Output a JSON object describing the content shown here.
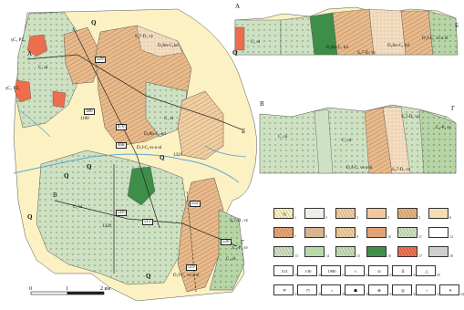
{
  "map": {
    "units": [
      "Q",
      "C₁ ol",
      "D₂fm-C₁kd",
      "S₂7-D₁ vz",
      "D₁f-C₁vs-a ol",
      "C₁-P₁ sv",
      "D₂fm-C₁ kd",
      "γC₁ PZ₁"
    ],
    "main_labels": {
      "q1": "Q",
      "q2": "Q",
      "q3": "Q",
      "q4": "Q",
      "q5": "Q",
      "q6": "Q",
      "q7": "Q",
      "c1ol_a": "C₁ ol",
      "c1ol_b": "C₁ ol",
      "c1ol_c": "C₁ ol",
      "c1ol_d": "C₁ ol",
      "d2fm_a": "D₂fm-C₁kd",
      "d2fm_b": "D₂fm-C₁ kd",
      "s27_a": "S₂7-D₁ vz",
      "s27_b": "S₂7-D₁ vz",
      "d1f_a": "D₁f-C₁vs-a ol",
      "d1f_b": "D₁f-C₁ vs-a ol",
      "d1f_c": "D₁f-C₁ vs-a ol",
      "c1p_a": "C₁-P₁ sv",
      "gamma_a": "γC₁ PZ₁",
      "gamma_b": "γC₁ PZ₁"
    },
    "section_letters": {
      "A": "А",
      "B": "Б",
      "V": "В",
      "G": "Г"
    },
    "well_ids": [
      "529",
      "470",
      "468",
      "380",
      "516",
      "513",
      "552",
      "520",
      "519"
    ],
    "elevations": [
      "1320",
      "1320",
      "1180"
    ]
  },
  "section_ab": {
    "left": "А",
    "right": "Б",
    "labels": [
      "C₁ ol",
      "D₂fm-C₁ kd",
      "S₂7-D₁ vz",
      "D₂fm-C₁ kd",
      "D₁f-C₁ vs-a ol"
    ]
  },
  "section_vg": {
    "left": "В",
    "right": "Г",
    "labels": [
      "C₁ ol",
      "C₁ ol",
      "D₁f-C₁ vs-a ol",
      "S₂7-D₁ vz",
      "S₂7-D₁ vz",
      "C₁-P₁ sv"
    ]
  },
  "legend": {
    "row1": [
      {
        "t": "Q",
        "n": "1",
        "c": "#fbf3c0"
      },
      {
        "t": "",
        "n": "2",
        "c": "#efeee8"
      },
      {
        "t": "",
        "n": "3",
        "c": "#f4d0a6"
      },
      {
        "t": "",
        "n": "4",
        "c": "#f1c89a"
      },
      {
        "t": "",
        "n": "5",
        "c": "#e9b583"
      },
      {
        "t": "",
        "n": "6",
        "c": "#f5dcb5"
      }
    ],
    "row2": [
      {
        "t": "",
        "n": "7",
        "c": "#e8a776"
      },
      {
        "t": "",
        "n": "8",
        "c": "#d7b68f"
      },
      {
        "t": "",
        "n": "9",
        "c": "#f1cfa2"
      },
      {
        "t": "",
        "n": "10",
        "c": "#e2a274"
      },
      {
        "t": "",
        "n": "11",
        "c": "#cfe2c1"
      },
      {
        "t": "",
        "n": "12",
        "c": "#ffffff"
      }
    ],
    "row3": [
      {
        "t": "",
        "n": "13",
        "c": "#cfe2c1"
      },
      {
        "t": "",
        "n": "14",
        "c": "#b8d8a9"
      },
      {
        "t": "",
        "n": "15",
        "c": "#c8dfba"
      },
      {
        "t": "",
        "n": "16",
        "c": "#3f8f4a"
      },
      {
        "t": "",
        "n": "17",
        "c": "#ef7451"
      },
      {
        "t": "",
        "n": "18",
        "c": "#cfcfcf"
      }
    ],
    "row4": [
      {
        "t": "513",
        "n": "19",
        "c": "#ffffff"
      },
      {
        "t": "ƒ30",
        "n": "20",
        "c": "#ffffff"
      },
      {
        "t": "1980",
        "n": "21",
        "c": "#ffffff"
      },
      {
        "t": "☆",
        "n": "22",
        "c": "#ffffff"
      },
      {
        "t": "⊙",
        "n": "23",
        "c": "#ffffff"
      },
      {
        "t": "♁",
        "n": "24",
        "c": "#ffffff"
      },
      {
        "t": "△",
        "n": "25",
        "c": "#ffffff"
      }
    ],
    "row5": [
      {
        "t": "Ψ",
        "n": "27",
        "c": "#ffffff"
      },
      {
        "t": "⊓",
        "n": "28",
        "c": "#ffffff"
      },
      {
        "t": "⌂",
        "n": "29",
        "c": "#ffffff"
      },
      {
        "t": "☗",
        "n": "30",
        "c": "#ffffff"
      },
      {
        "t": "⊕",
        "n": "31",
        "c": "#ffffff"
      },
      {
        "t": "◎",
        "n": "32",
        "c": "#ffffff"
      },
      {
        "t": "♀",
        "n": "33",
        "c": "#ffffff"
      },
      {
        "t": "✶",
        "n": "34",
        "c": "#ffffff"
      }
    ]
  },
  "scale": {
    "t0": "0",
    "t1": "1",
    "t2": "2 км"
  },
  "colors": {
    "q": "#fbf1c3",
    "c1ol": "#cfe1c3",
    "d2fm": "#e9bb8c",
    "s27": "#f3dcc0",
    "d1f": "#b7d5a6",
    "dark_green": "#3e8d49",
    "red": "#ee6d4c",
    "water": "#5aa5d6"
  }
}
